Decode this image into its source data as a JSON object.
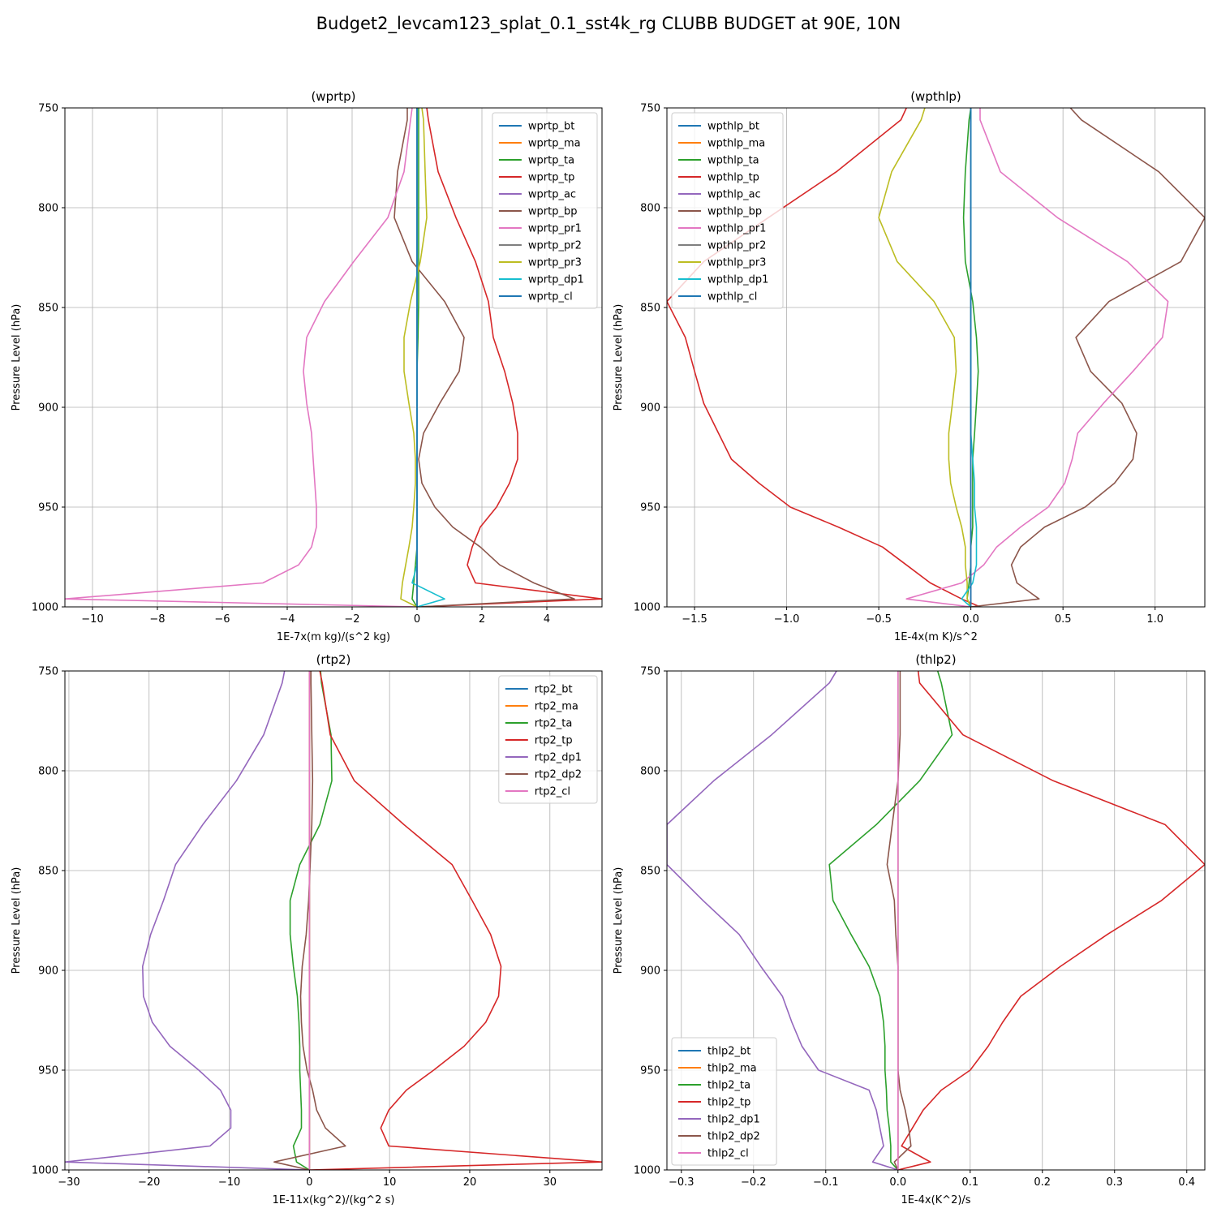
{
  "figure": {
    "suptitle": "Budget2_levcam123_splat_0.1_sst4k_rg CLUBB BUDGET at 90E, 10N"
  },
  "chart_data": [
    {
      "type": "line",
      "title": "(wprtp)",
      "xlabel": "1E-7x(m kg)/(s^2 kg)",
      "ylabel": "Pressure Level (hPa)",
      "xlim": [
        -10.85,
        5.7
      ],
      "ylim": [
        1000,
        750
      ],
      "xticks": [
        -10,
        -8,
        -6,
        -4,
        -2,
        0,
        2,
        4
      ],
      "xtick_labels": [
        "−10",
        "−8",
        "−6",
        "−4",
        "−2",
        "0",
        "2",
        "4"
      ],
      "yticks": [
        750,
        800,
        850,
        900,
        950,
        1000
      ],
      "legend_position": "top-right",
      "levels": [
        750,
        756,
        782,
        805,
        827,
        847,
        865,
        882,
        898,
        913,
        926,
        938,
        950,
        960,
        970,
        979,
        988,
        996,
        1000
      ],
      "series": [
        {
          "name": "wprtp_bt",
          "color": "#1f77b4",
          "values": [
            0,
            0,
            0,
            0,
            0,
            0,
            0,
            0,
            0,
            0,
            0,
            0,
            0,
            0,
            0,
            0,
            0,
            0,
            0
          ]
        },
        {
          "name": "wprtp_ma",
          "color": "#ff7f0e",
          "values": [
            0,
            0,
            0,
            0,
            0,
            0,
            0,
            0,
            0,
            0,
            0,
            0,
            0,
            0,
            0,
            0,
            0,
            0,
            0
          ]
        },
        {
          "name": "wprtp_ta",
          "color": "#2ca02c",
          "values": [
            0.05,
            0.05,
            0.05,
            0.05,
            0.05,
            0.05,
            0.03,
            0,
            0,
            0,
            0,
            0,
            0,
            0,
            0,
            -0.05,
            -0.1,
            -0.15,
            0
          ]
        },
        {
          "name": "wprtp_tp",
          "color": "#d62728",
          "values": [
            0.3,
            0.35,
            0.65,
            1.2,
            1.8,
            2.2,
            2.35,
            2.7,
            2.95,
            3.1,
            3.1,
            2.85,
            2.45,
            1.95,
            1.7,
            1.55,
            1.8,
            5.7,
            0.05
          ]
        },
        {
          "name": "wprtp_ac",
          "color": "#9467bd",
          "values": [
            0,
            0,
            0,
            0,
            0,
            0,
            0,
            0,
            0,
            0,
            0,
            0,
            0,
            0,
            0,
            0,
            0,
            0,
            0
          ]
        },
        {
          "name": "wprtp_bp",
          "color": "#8c564b",
          "values": [
            -0.3,
            -0.3,
            -0.6,
            -0.7,
            -0.15,
            0.85,
            1.45,
            1.3,
            0.7,
            0.2,
            0.05,
            0.15,
            0.55,
            1.1,
            1.95,
            2.55,
            3.6,
            4.85,
            0.05
          ]
        },
        {
          "name": "wprtp_pr1",
          "color": "#e377c2",
          "values": [
            -0.15,
            -0.2,
            -0.4,
            -0.9,
            -1.95,
            -2.85,
            -3.4,
            -3.5,
            -3.4,
            -3.25,
            -3.2,
            -3.15,
            -3.1,
            -3.1,
            -3.25,
            -3.65,
            -4.75,
            -10.85,
            0
          ]
        },
        {
          "name": "wprtp_pr2",
          "color": "#7f7f7f",
          "values": [
            0,
            0,
            0,
            0,
            0,
            0,
            0,
            0,
            0,
            0,
            0,
            0,
            0,
            0,
            0,
            0,
            0,
            0,
            0
          ]
        },
        {
          "name": "wprtp_pr3",
          "color": "#bcbd22",
          "values": [
            0.15,
            0.2,
            0.25,
            0.3,
            0.1,
            -0.2,
            -0.4,
            -0.4,
            -0.25,
            -0.1,
            -0.05,
            -0.05,
            -0.1,
            -0.15,
            -0.25,
            -0.35,
            -0.45,
            -0.5,
            0
          ]
        },
        {
          "name": "wprtp_dp1",
          "color": "#17becf",
          "values": [
            0,
            0,
            0,
            0,
            0,
            0,
            0,
            0,
            0,
            0,
            0,
            0,
            0,
            0,
            0,
            0,
            -0.15,
            0.85,
            0
          ]
        },
        {
          "name": "wprtp_cl",
          "color": "#1f77b4",
          "values": [
            0,
            0,
            0,
            0,
            0,
            0,
            0,
            0,
            0,
            0,
            0,
            0,
            0,
            0,
            0,
            0,
            0,
            0,
            0
          ]
        }
      ]
    },
    {
      "type": "line",
      "title": "(wpthlp)",
      "xlabel": "1E-4x(m K)/s^2",
      "ylabel": "Pressure Level (hPa)",
      "xlim": [
        -1.65,
        1.27
      ],
      "ylim": [
        1000,
        750
      ],
      "xticks": [
        -1.5,
        -1.0,
        -0.5,
        0.0,
        0.5,
        1.0
      ],
      "xtick_labels": [
        "−1.5",
        "−1.0",
        "−0.5",
        "0.0",
        "0.5",
        "1.0"
      ],
      "yticks": [
        750,
        800,
        850,
        900,
        950,
        1000
      ],
      "legend_position": "top-left",
      "levels": [
        750,
        756,
        782,
        805,
        827,
        847,
        865,
        882,
        898,
        913,
        926,
        938,
        950,
        960,
        970,
        979,
        988,
        996,
        1000
      ],
      "series": [
        {
          "name": "wpthlp_bt",
          "color": "#1f77b4",
          "values": [
            0,
            0,
            0,
            0,
            0,
            0,
            0,
            0,
            0,
            0,
            0,
            0,
            0,
            0,
            0,
            0,
            0,
            0,
            0
          ]
        },
        {
          "name": "wpthlp_ma",
          "color": "#ff7f0e",
          "values": [
            0,
            0,
            0,
            0,
            0,
            0,
            0,
            0,
            0,
            0,
            0,
            0,
            0,
            0,
            0,
            0,
            0,
            0,
            0
          ]
        },
        {
          "name": "wpthlp_ta",
          "color": "#2ca02c",
          "values": [
            0,
            -0.01,
            -0.03,
            -0.04,
            -0.03,
            0.01,
            0.03,
            0.04,
            0.03,
            0.02,
            0.01,
            0.01,
            0.01,
            0.01,
            0,
            0,
            -0.01,
            -0.02,
            0
          ]
        },
        {
          "name": "wpthlp_tp",
          "color": "#d62728",
          "values": [
            -0.35,
            -0.38,
            -0.73,
            -1.1,
            -1.45,
            -1.65,
            -1.55,
            -1.5,
            -1.45,
            -1.37,
            -1.3,
            -1.15,
            -0.98,
            -0.72,
            -0.48,
            -0.35,
            -0.22,
            -0.05,
            0.05
          ]
        },
        {
          "name": "wpthlp_ac",
          "color": "#9467bd",
          "values": [
            0,
            0,
            0,
            0,
            0,
            0,
            0,
            0,
            0,
            0,
            0,
            0,
            0,
            0,
            0,
            0,
            0,
            0,
            0
          ]
        },
        {
          "name": "wpthlp_bp",
          "color": "#8c564b",
          "values": [
            0.54,
            0.6,
            1.02,
            1.27,
            1.14,
            0.75,
            0.57,
            0.65,
            0.82,
            0.9,
            0.88,
            0.78,
            0.62,
            0.4,
            0.27,
            0.22,
            0.25,
            0.37,
            0
          ]
        },
        {
          "name": "wpthlp_pr1",
          "color": "#e377c2",
          "values": [
            0.05,
            0.05,
            0.16,
            0.47,
            0.85,
            1.07,
            1.04,
            0.88,
            0.72,
            0.58,
            0.55,
            0.51,
            0.42,
            0.27,
            0.14,
            0.07,
            -0.05,
            -0.35,
            0
          ]
        },
        {
          "name": "wpthlp_pr2",
          "color": "#7f7f7f",
          "values": [
            0,
            0,
            0,
            0,
            0,
            0,
            0,
            0,
            0,
            0,
            0,
            0,
            0,
            0,
            0,
            0,
            0,
            0,
            0
          ]
        },
        {
          "name": "wpthlp_pr3",
          "color": "#bcbd22",
          "values": [
            -0.25,
            -0.27,
            -0.43,
            -0.5,
            -0.4,
            -0.2,
            -0.09,
            -0.08,
            -0.1,
            -0.12,
            -0.12,
            -0.11,
            -0.08,
            -0.05,
            -0.03,
            -0.03,
            -0.02,
            -0.02,
            0
          ]
        },
        {
          "name": "wpthlp_dp1",
          "color": "#17becf",
          "values": [
            0,
            0,
            0,
            0,
            0,
            0,
            0,
            0,
            0,
            0,
            0.01,
            0.02,
            0.02,
            0.03,
            0.03,
            0.03,
            0.01,
            -0.05,
            0
          ]
        },
        {
          "name": "wpthlp_cl",
          "color": "#1f77b4",
          "values": [
            0,
            0,
            0,
            0,
            0,
            0,
            0,
            0,
            0,
            0,
            0,
            0,
            0,
            0,
            0,
            0,
            0,
            0,
            0
          ]
        }
      ]
    },
    {
      "type": "line",
      "title": "(rtp2)",
      "xlabel": "1E-11x(kg^2)/(kg^2 s)",
      "ylabel": "Pressure Level (hPa)",
      "xlim": [
        -30.5,
        36.5
      ],
      "ylim": [
        1000,
        750
      ],
      "xticks": [
        -30,
        -20,
        -10,
        0,
        10,
        20,
        30
      ],
      "xtick_labels": [
        "−30",
        "−20",
        "−10",
        "0",
        "10",
        "20",
        "30"
      ],
      "yticks": [
        750,
        800,
        850,
        900,
        950,
        1000
      ],
      "legend_position": "top-right",
      "levels": [
        750,
        756,
        782,
        805,
        827,
        847,
        865,
        882,
        898,
        913,
        926,
        938,
        950,
        960,
        970,
        979,
        988,
        996,
        1000
      ],
      "series": [
        {
          "name": "rtp2_bt",
          "color": "#1f77b4",
          "values": [
            0,
            0,
            0,
            0,
            0,
            0,
            0,
            0,
            0,
            0,
            0,
            0,
            0,
            0,
            0,
            0,
            0,
            0,
            0
          ]
        },
        {
          "name": "rtp2_ma",
          "color": "#ff7f0e",
          "values": [
            0,
            0,
            0,
            0,
            0,
            0,
            0,
            0,
            0,
            0,
            0,
            0,
            0,
            0,
            0,
            0,
            0,
            0,
            0
          ]
        },
        {
          "name": "rtp2_ta",
          "color": "#2ca02c",
          "values": [
            1.4,
            1.5,
            2.7,
            2.8,
            1.3,
            -1.2,
            -2.4,
            -2.4,
            -2.0,
            -1.5,
            -1.3,
            -1.2,
            -1.2,
            -1.1,
            -1.0,
            -1.0,
            -2.0,
            -1.6,
            0
          ]
        },
        {
          "name": "rtp2_tp",
          "color": "#d62728",
          "values": [
            1.3,
            1.6,
            2.6,
            5.6,
            11.8,
            17.8,
            20.3,
            22.6,
            23.9,
            23.6,
            22.0,
            19.3,
            15.5,
            12.1,
            9.9,
            8.9,
            9.9,
            36.5,
            0
          ]
        },
        {
          "name": "rtp2_dp1",
          "color": "#9467bd",
          "values": [
            -3.1,
            -3.4,
            -5.7,
            -9.1,
            -13.3,
            -16.7,
            -18.2,
            -19.8,
            -20.8,
            -20.7,
            -19.6,
            -17.4,
            -13.8,
            -11.1,
            -9.8,
            -9.8,
            -12.4,
            -30.5,
            0
          ]
        },
        {
          "name": "rtp2_dp2",
          "color": "#8c564b",
          "values": [
            0.2,
            0.2,
            0.3,
            0.4,
            0.3,
            0.1,
            -0.1,
            -0.4,
            -0.9,
            -1.1,
            -1.0,
            -0.8,
            -0.3,
            0.4,
            0.9,
            2.0,
            4.5,
            -4.4,
            0
          ]
        },
        {
          "name": "rtp2_cl",
          "color": "#e377c2",
          "values": [
            0,
            0,
            0,
            0,
            0,
            0,
            0,
            0,
            0,
            0,
            0,
            0,
            0,
            0,
            0,
            0,
            0,
            0,
            0
          ]
        }
      ]
    },
    {
      "type": "line",
      "title": "(thlp2)",
      "xlabel": "1E-4x(K^2)/s",
      "ylabel": "Pressure Level (hPa)",
      "xlim": [
        -0.32,
        0.425
      ],
      "ylim": [
        1000,
        750
      ],
      "xticks": [
        -0.3,
        -0.2,
        -0.1,
        0.0,
        0.1,
        0.2,
        0.3,
        0.4
      ],
      "xtick_labels": [
        "−0.3",
        "−0.2",
        "−0.1",
        "0.0",
        "0.1",
        "0.2",
        "0.3",
        "0.4"
      ],
      "yticks": [
        750,
        800,
        850,
        900,
        950,
        1000
      ],
      "legend_position": "bottom-left",
      "levels": [
        750,
        756,
        782,
        805,
        827,
        847,
        865,
        882,
        898,
        913,
        926,
        938,
        950,
        960,
        970,
        979,
        988,
        996,
        1000
      ],
      "series": [
        {
          "name": "thlp2_bt",
          "color": "#1f77b4",
          "values": [
            0,
            0,
            0,
            0,
            0,
            0,
            0,
            0,
            0,
            0,
            0,
            0,
            0,
            0,
            0,
            0,
            0,
            0,
            0
          ]
        },
        {
          "name": "thlp2_ma",
          "color": "#ff7f0e",
          "values": [
            0,
            0,
            0,
            0,
            0,
            0,
            0,
            0,
            0,
            0,
            0,
            0,
            0,
            0,
            0,
            0,
            0,
            0,
            0
          ]
        },
        {
          "name": "thlp2_ta",
          "color": "#2ca02c",
          "values": [
            0.055,
            0.06,
            0.075,
            0.03,
            -0.03,
            -0.095,
            -0.09,
            -0.065,
            -0.04,
            -0.025,
            -0.02,
            -0.018,
            -0.018,
            -0.016,
            -0.015,
            -0.012,
            -0.01,
            -0.01,
            0
          ]
        },
        {
          "name": "thlp2_tp",
          "color": "#d62728",
          "values": [
            0.028,
            0.03,
            0.09,
            0.215,
            0.37,
            0.425,
            0.365,
            0.29,
            0.225,
            0.17,
            0.145,
            0.125,
            0.1,
            0.06,
            0.035,
            0.02,
            0.005,
            0.045,
            0
          ]
        },
        {
          "name": "thlp2_dp1",
          "color": "#9467bd",
          "values": [
            -0.085,
            -0.095,
            -0.175,
            -0.255,
            -0.32,
            -0.32,
            -0.27,
            -0.22,
            -0.19,
            -0.16,
            -0.147,
            -0.133,
            -0.11,
            -0.04,
            -0.03,
            -0.025,
            -0.02,
            -0.035,
            0
          ]
        },
        {
          "name": "thlp2_dp2",
          "color": "#8c564b",
          "values": [
            0.003,
            0.003,
            0.003,
            0,
            -0.008,
            -0.015,
            -0.005,
            -0.003,
            0,
            0,
            0,
            0,
            0,
            0.003,
            0.01,
            0.015,
            0.018,
            -0.005,
            0
          ]
        },
        {
          "name": "thlp2_cl",
          "color": "#e377c2",
          "values": [
            0,
            0,
            0,
            0,
            0,
            0,
            0,
            0,
            0,
            0,
            0,
            0,
            0,
            0,
            0,
            0,
            0,
            0,
            0
          ]
        }
      ]
    }
  ]
}
